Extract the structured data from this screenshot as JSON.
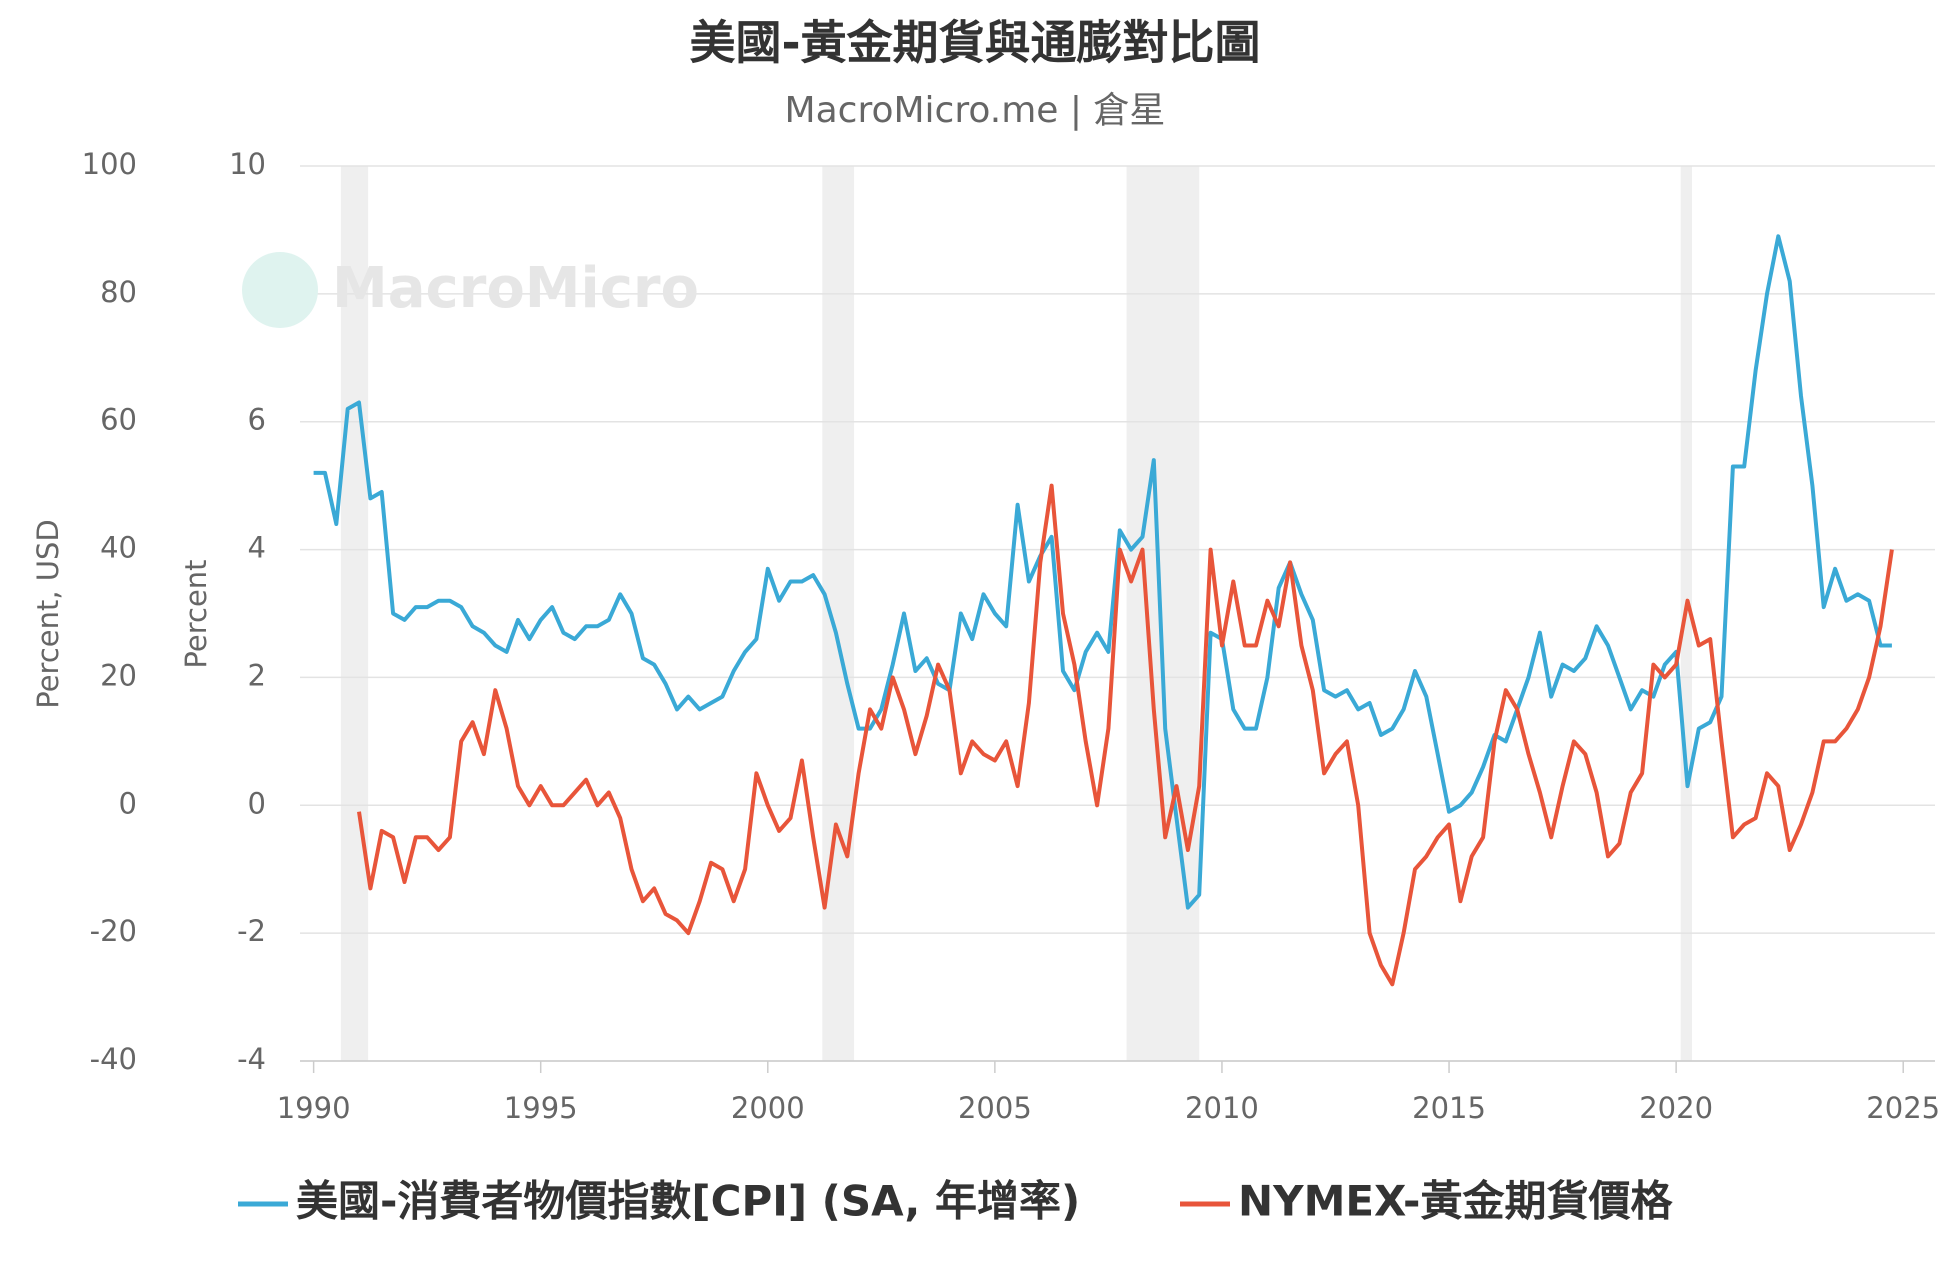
{
  "chart_data": {
    "type": "line",
    "title": "美國-黃金期貨與通膨對比圖",
    "subtitle": "MacroMicro.me | 倉星",
    "watermark": "MacroMicro",
    "ylabel": "Percent, USD",
    "y2label": "Percent",
    "xlim": [
      1989.7,
      2025.7
    ],
    "xticks": [
      1990,
      1995,
      2000,
      2005,
      2010,
      2015,
      2020,
      2025
    ],
    "ylim": [
      -40,
      100
    ],
    "yticks": [
      -40,
      -20,
      0,
      20,
      40,
      60,
      80,
      100
    ],
    "y2lim": [
      -4,
      10
    ],
    "y2ticks": [
      -4,
      -2,
      0,
      2,
      4,
      6,
      8,
      10
    ],
    "grid": true,
    "recessions": [
      [
        1990.6,
        1991.2
      ],
      [
        2001.2,
        2001.9
      ],
      [
        2007.9,
        2009.5
      ],
      [
        2020.1,
        2020.35
      ]
    ],
    "x": [
      1990,
      1990.25,
      1990.5,
      1990.75,
      1991,
      1991.25,
      1991.5,
      1991.75,
      1992,
      1992.25,
      1992.5,
      1992.75,
      1993,
      1993.25,
      1993.5,
      1993.75,
      1994,
      1994.25,
      1994.5,
      1994.75,
      1995,
      1995.25,
      1995.5,
      1995.75,
      1996,
      1996.25,
      1996.5,
      1996.75,
      1997,
      1997.25,
      1997.5,
      1997.75,
      1998,
      1998.25,
      1998.5,
      1998.75,
      1999,
      1999.25,
      1999.5,
      1999.75,
      2000,
      2000.25,
      2000.5,
      2000.75,
      2001,
      2001.25,
      2001.5,
      2001.75,
      2002,
      2002.25,
      2002.5,
      2002.75,
      2003,
      2003.25,
      2003.5,
      2003.75,
      2004,
      2004.25,
      2004.5,
      2004.75,
      2005,
      2005.25,
      2005.5,
      2005.75,
      2006,
      2006.25,
      2006.5,
      2006.75,
      2007,
      2007.25,
      2007.5,
      2007.75,
      2008,
      2008.25,
      2008.5,
      2008.75,
      2009,
      2009.25,
      2009.5,
      2009.75,
      2010,
      2010.25,
      2010.5,
      2010.75,
      2011,
      2011.25,
      2011.5,
      2011.75,
      2012,
      2012.25,
      2012.5,
      2012.75,
      2013,
      2013.25,
      2013.5,
      2013.75,
      2014,
      2014.25,
      2014.5,
      2014.75,
      2015,
      2015.25,
      2015.5,
      2015.75,
      2016,
      2016.25,
      2016.5,
      2016.75,
      2017,
      2017.25,
      2017.5,
      2017.75,
      2018,
      2018.25,
      2018.5,
      2018.75,
      2019,
      2019.25,
      2019.5,
      2019.75,
      2020,
      2020.25,
      2020.5,
      2020.75,
      2021,
      2021.25,
      2021.5,
      2021.75,
      2022,
      2022.25,
      2022.5,
      2022.75,
      2023,
      2023.25,
      2023.5,
      2023.75,
      2024,
      2024.25,
      2024.5,
      2024.75
    ],
    "series": [
      {
        "name": "美國-消費者物價指數[CPI] (SA, 年增率)",
        "color": "#3aa9d6",
        "axis": "y2",
        "values": [
          5.2,
          5.2,
          4.4,
          6.2,
          6.3,
          4.8,
          4.9,
          3.0,
          2.9,
          3.1,
          3.1,
          3.2,
          3.2,
          3.1,
          2.8,
          2.7,
          2.5,
          2.4,
          2.9,
          2.6,
          2.9,
          3.1,
          2.7,
          2.6,
          2.8,
          2.8,
          2.9,
          3.3,
          3.0,
          2.3,
          2.2,
          1.9,
          1.5,
          1.7,
          1.5,
          1.6,
          1.7,
          2.1,
          2.4,
          2.6,
          3.7,
          3.2,
          3.5,
          3.5,
          3.6,
          3.3,
          2.7,
          1.9,
          1.2,
          1.2,
          1.5,
          2.2,
          3.0,
          2.1,
          2.3,
          1.9,
          1.8,
          3.0,
          2.6,
          3.3,
          3.0,
          2.8,
          4.7,
          3.5,
          3.9,
          4.2,
          2.1,
          1.8,
          2.4,
          2.7,
          2.4,
          4.3,
          4.0,
          4.2,
          5.4,
          1.2,
          -0.2,
          -1.6,
          -1.4,
          2.7,
          2.6,
          1.5,
          1.2,
          1.2,
          2.0,
          3.4,
          3.8,
          3.3,
          2.9,
          1.8,
          1.7,
          1.8,
          1.5,
          1.6,
          1.1,
          1.2,
          1.5,
          2.1,
          1.7,
          0.8,
          -0.1,
          0.0,
          0.2,
          0.6,
          1.1,
          1.0,
          1.5,
          2.0,
          2.7,
          1.7,
          2.2,
          2.1,
          2.3,
          2.8,
          2.5,
          2.0,
          1.5,
          1.8,
          1.7,
          2.2,
          2.4,
          0.3,
          1.2,
          1.3,
          1.7,
          5.3,
          5.3,
          6.8,
          8.0,
          8.9,
          8.2,
          6.4,
          5.0,
          3.1,
          3.7,
          3.2,
          3.3,
          3.2,
          2.5,
          2.5
        ]
      },
      {
        "name": "NYMEX-黃金期貨價格",
        "color": "#e8553a",
        "values": [
          null,
          null,
          null,
          null,
          -1,
          -13,
          -4,
          -5,
          -12,
          -5,
          -5,
          -7,
          -5,
          10,
          13,
          8,
          18,
          12,
          3,
          0,
          3,
          0,
          0,
          2,
          4,
          0,
          2,
          -2,
          -10,
          -15,
          -13,
          -17,
          -18,
          -20,
          -15,
          -9,
          -10,
          -15,
          -10,
          5,
          0,
          -4,
          -2,
          7,
          -5,
          -16,
          -3,
          -8,
          5,
          15,
          12,
          20,
          15,
          8,
          14,
          22,
          18,
          5,
          10,
          8,
          7,
          10,
          3,
          16,
          38,
          50,
          30,
          22,
          10,
          0,
          12,
          40,
          35,
          40,
          15,
          -5,
          3,
          -7,
          3,
          40,
          25,
          35,
          25,
          25,
          32,
          28,
          38,
          25,
          18,
          5,
          8,
          10,
          0,
          -20,
          -25,
          -28,
          -20,
          -10,
          -8,
          -5,
          -3,
          -15,
          -8,
          -5,
          10,
          18,
          15,
          8,
          2,
          -5,
          3,
          10,
          8,
          2,
          -8,
          -6,
          2,
          5,
          22,
          20,
          22,
          32,
          25,
          26,
          10,
          -5,
          -3,
          -2,
          5,
          3,
          -7,
          -3,
          2,
          10,
          10,
          12,
          15,
          20,
          28,
          40
        ]
      }
    ]
  }
}
